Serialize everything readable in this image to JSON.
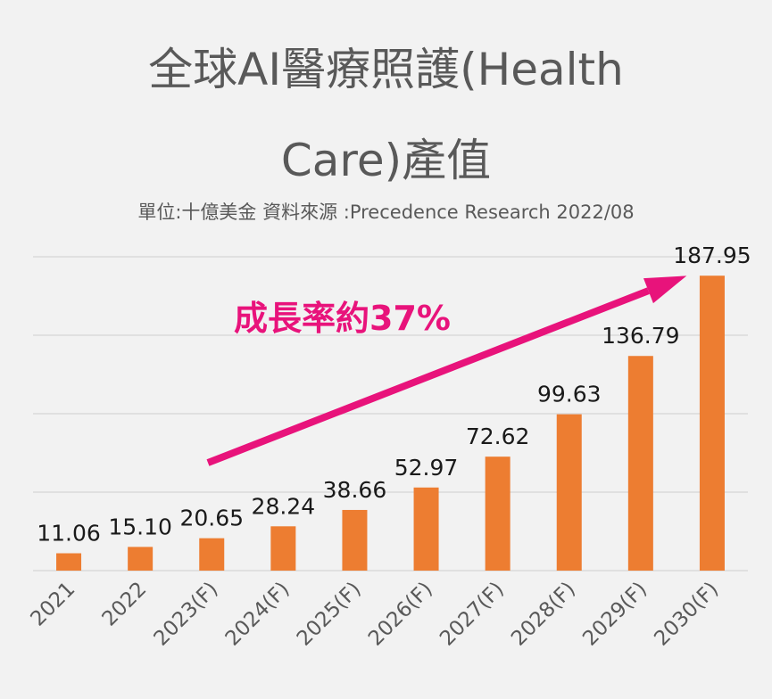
{
  "chart_data": {
    "type": "bar",
    "title_lines": [
      "全球AI醫療照護(Health",
      "Care)產值"
    ],
    "subtitle": "單位:十億美金 資料來源 :Precedence Research 2022/08",
    "categories": [
      "2021",
      "2022",
      "2023(F)",
      "2024(F)",
      "2025(F)",
      "2026(F)",
      "2027(F)",
      "2028(F)",
      "2029(F)",
      "2030(F)"
    ],
    "values": [
      11.06,
      15.1,
      20.65,
      28.24,
      38.66,
      52.97,
      72.62,
      99.63,
      136.79,
      187.95
    ],
    "value_labels": [
      "11.06",
      "15.10",
      "20.65",
      "28.24",
      "38.66",
      "52.97",
      "72.62",
      "99.63",
      "136.79",
      "187.95"
    ],
    "ylim": [
      0,
      200
    ],
    "gridlines": [
      0,
      50,
      100,
      150,
      200
    ],
    "grid": true,
    "y_tick_labels_shown": false,
    "legend": "none",
    "annotation": "成長率約37%",
    "colors": {
      "bar": "#ed7d31",
      "annotation": "#e8137b",
      "grid": "#d9d9d9",
      "text": "#595959",
      "labels": "#1a1a1a",
      "background": "#f2f2f2"
    }
  }
}
